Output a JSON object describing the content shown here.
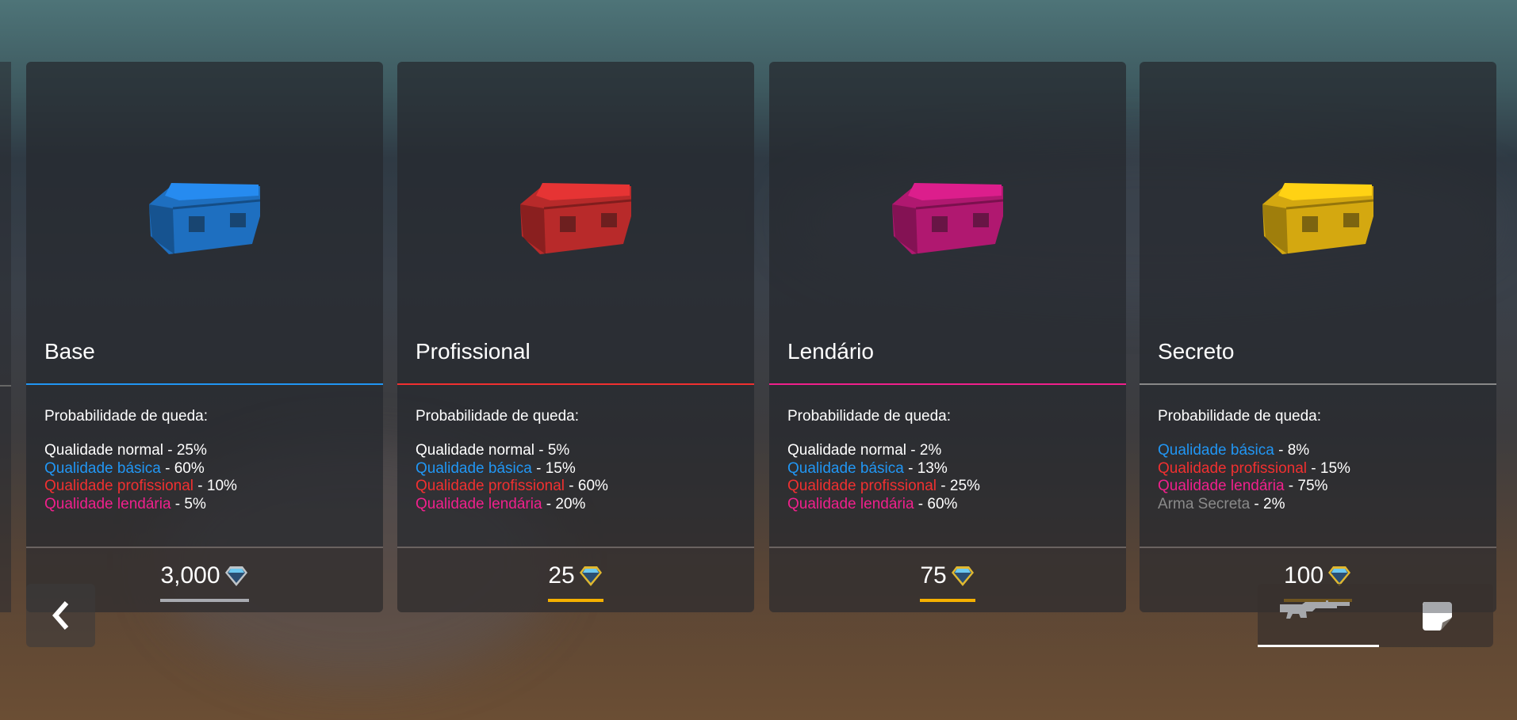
{
  "cards": [
    {
      "name": "Base",
      "color": "#2196f3",
      "chest_color": "#1e6fc0",
      "prob_label": "Probabilidade de queda:",
      "items": [
        {
          "label": "Qualidade normal",
          "value": " - 25%",
          "color": "#ffffff"
        },
        {
          "label": "Qualidade básica",
          "value": " - 60%",
          "color": "#2196f3"
        },
        {
          "label": "Qualidade profissional",
          "value": " - 10%",
          "color": "#f03030"
        },
        {
          "label": "Qualidade lendária",
          "value": " - 5%",
          "color": "#f0208c"
        }
      ],
      "price": "3,000",
      "currency": "gem-icon",
      "underline": "#a8aab0"
    },
    {
      "name": "Profissional",
      "color": "#f03030",
      "chest_color": "#b82a2a",
      "prob_label": "Probabilidade de queda:",
      "items": [
        {
          "label": "Qualidade normal",
          "value": " - 5%",
          "color": "#ffffff"
        },
        {
          "label": "Qualidade básica",
          "value": " - 15%",
          "color": "#2196f3"
        },
        {
          "label": "Qualidade profissional",
          "value": " - 60%",
          "color": "#f03030"
        },
        {
          "label": "Qualidade lendária",
          "value": " - 20%",
          "color": "#f0208c"
        }
      ],
      "price": "25",
      "currency": "gem-icon",
      "underline": "#f5b000"
    },
    {
      "name": "Lendário",
      "color": "#f0208c",
      "chest_color": "#b01870",
      "prob_label": "Probabilidade de queda:",
      "items": [
        {
          "label": "Qualidade normal",
          "value": " - 2%",
          "color": "#ffffff"
        },
        {
          "label": "Qualidade básica",
          "value": " - 13%",
          "color": "#2196f3"
        },
        {
          "label": "Qualidade profissional",
          "value": " - 25%",
          "color": "#f03030"
        },
        {
          "label": "Qualidade lendária",
          "value": " - 60%",
          "color": "#f0208c"
        }
      ],
      "price": "75",
      "currency": "gem-icon",
      "underline": "#f5b000"
    },
    {
      "name": "Secreto",
      "color": "#888888",
      "chest_color": "#d4a810",
      "prob_label": "Probabilidade de queda:",
      "items": [
        {
          "label": "Qualidade básica",
          "value": " - 8%",
          "color": "#2196f3"
        },
        {
          "label": "Qualidade profissional",
          "value": " - 15%",
          "color": "#f03030"
        },
        {
          "label": "Qualidade lendária",
          "value": " - 75%",
          "color": "#f0208c"
        },
        {
          "label": "Arma Secreta",
          "value": " - 2%",
          "color": "#8a8a8a"
        }
      ],
      "price": "100",
      "currency": "gem-icon",
      "underline": "#f5b000"
    }
  ],
  "nav": {
    "back_icon": "chevron-left-icon"
  },
  "tabs": [
    {
      "icon": "rifle-icon",
      "active": true
    },
    {
      "icon": "sticker-icon",
      "active": false
    }
  ]
}
